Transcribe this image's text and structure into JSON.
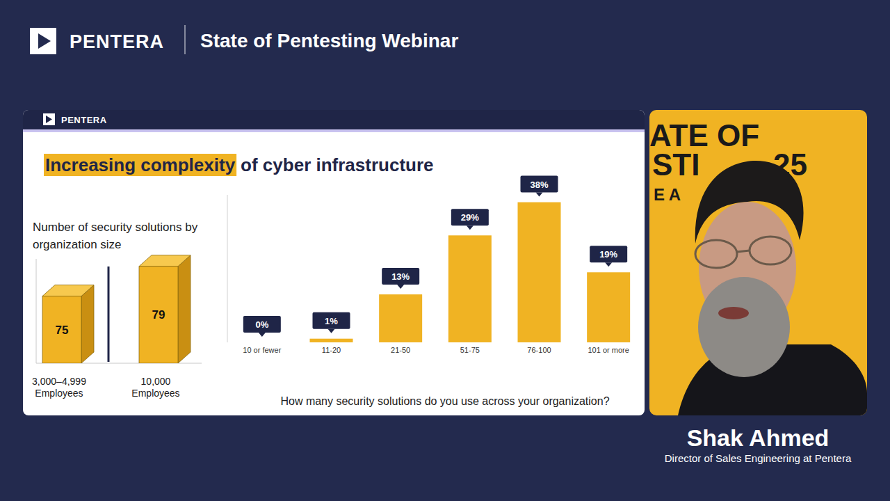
{
  "header": {
    "brand": "PENTERA",
    "title": "State of Pentesting Webinar"
  },
  "slide": {
    "brand": "PENTERA",
    "title_highlight": "Increasing complexity",
    "title_rest": "of cyber infrastructure"
  },
  "chart_data": [
    {
      "type": "bar",
      "title": "Number of security solutions by organization size",
      "categories": [
        "3,000–4,999 Employees",
        "10,000 Employees"
      ],
      "values": [
        75,
        79
      ],
      "color": "#f0b323",
      "ylim": [
        66,
        80
      ],
      "data_labels": true,
      "tick_labels": "x"
    },
    {
      "type": "bar",
      "xlabel": "How many security solutions do you use across your organization?",
      "categories": [
        "10 or fewer",
        "11-20",
        "21-50",
        "51-75",
        "76-100",
        "101 or more"
      ],
      "values": [
        0,
        1,
        13,
        29,
        38,
        19
      ],
      "value_labels": [
        "0%",
        "1%",
        "13%",
        "29%",
        "38%",
        "19%"
      ],
      "color": "#f0b323",
      "ylim": [
        0,
        40
      ],
      "data_labels": true,
      "tick_labels": "x"
    }
  ],
  "video": {
    "backdrop": [
      "ATE OF",
      "STI",
      "25",
      "E A"
    ]
  },
  "presenter": {
    "name": "Shak Ahmed",
    "role": "Director of Sales Engineering at Pentera"
  }
}
